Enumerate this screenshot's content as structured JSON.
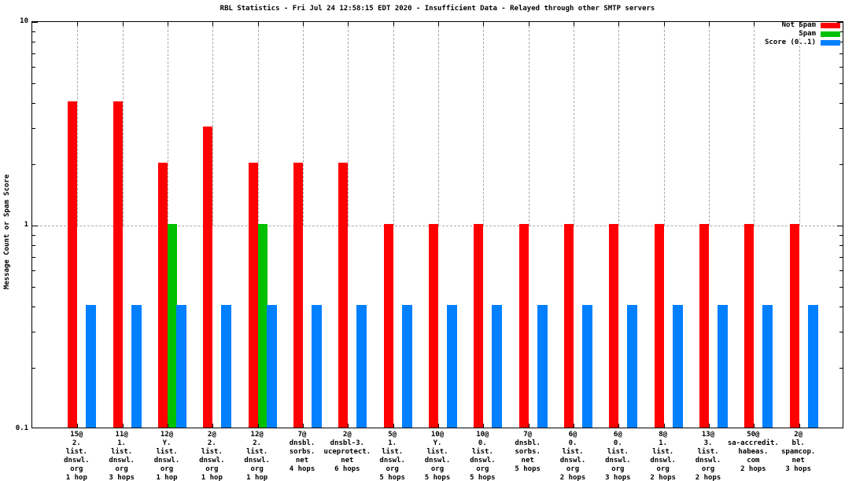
{
  "chart_data": {
    "type": "bar",
    "title": "RBL Statistics - Fri Jul 24 12:58:15 EDT 2020 - Insufficient Data - Relayed through other SMTP servers",
    "ylabel": "Message Count or Spam Score",
    "xlabel": "",
    "yscale": "log",
    "ylim": [
      0.1,
      10
    ],
    "grid": "horizontal dashed line at y=1; vertical dashed lines at each category from top down to y=1",
    "legend_position": "top-right",
    "yticks": [
      {
        "value": 10,
        "label": "10"
      },
      {
        "value": 1,
        "label": "1"
      },
      {
        "value": 0.1,
        "label": "0.1"
      }
    ],
    "legend": [
      {
        "name": "Not Spam",
        "color": "#ff0000"
      },
      {
        "name": "Spam",
        "color": "#00c000"
      },
      {
        "name": "Score (0..1)",
        "color": "#0080ff"
      }
    ],
    "categories": [
      [
        "15@",
        "2.",
        "list.",
        "dnswl.",
        "org",
        "1 hop"
      ],
      [
        "11@",
        "1.",
        "list.",
        "dnswl.",
        "org",
        "3 hops"
      ],
      [
        "12@",
        "Y.",
        "list.",
        "dnswl.",
        "org",
        "1 hop"
      ],
      [
        "2@",
        "2.",
        "list.",
        "dnswl.",
        "org",
        "1 hop"
      ],
      [
        "12@",
        "2.",
        "list.",
        "dnswl.",
        "org",
        "1 hop"
      ],
      [
        "7@",
        "dnsbl.",
        "sorbs.",
        "net",
        "4 hops"
      ],
      [
        "2@",
        "dnsbl-3.",
        "uceprotect.",
        "net",
        "6 hops"
      ],
      [
        "5@",
        "1.",
        "list.",
        "dnswl.",
        "org",
        "5 hops"
      ],
      [
        "10@",
        "Y.",
        "list.",
        "dnswl.",
        "org",
        "5 hops"
      ],
      [
        "10@",
        "0.",
        "list.",
        "dnswl.",
        "org",
        "5 hops"
      ],
      [
        "7@",
        "dnsbl.",
        "sorbs.",
        "net",
        "5 hops"
      ],
      [
        "6@",
        "0.",
        "list.",
        "dnswl.",
        "org",
        "2 hops"
      ],
      [
        "6@",
        "0.",
        "list.",
        "dnswl.",
        "org",
        "3 hops"
      ],
      [
        "8@",
        "1.",
        "list.",
        "dnswl.",
        "org",
        "2 hops"
      ],
      [
        "13@",
        "3.",
        "list.",
        "dnswl.",
        "org",
        "2 hops"
      ],
      [
        "50@",
        "sa-accredit.",
        "habeas.",
        "com",
        "2 hops"
      ],
      [
        "2@",
        "bl.",
        "spamcop.",
        "net",
        "3 hops"
      ]
    ],
    "series": [
      {
        "name": "Not Spam",
        "color": "#ff0000",
        "values": [
          4,
          4,
          2,
          3,
          2,
          2,
          2,
          1,
          1,
          1,
          1,
          1,
          1,
          1,
          1,
          1,
          1
        ]
      },
      {
        "name": "Spam",
        "color": "#00c000",
        "values": [
          0,
          0,
          1,
          0,
          1,
          0,
          0,
          0,
          0,
          0,
          0,
          0,
          0,
          0,
          0,
          0,
          0
        ]
      },
      {
        "name": "Score (0..1)",
        "color": "#0080ff",
        "values": [
          0.4,
          0.4,
          0.4,
          0.4,
          0.4,
          0.4,
          0.4,
          0.4,
          0.4,
          0.4,
          0.4,
          0.4,
          0.4,
          0.4,
          0.4,
          0.4,
          0.4
        ]
      }
    ]
  }
}
